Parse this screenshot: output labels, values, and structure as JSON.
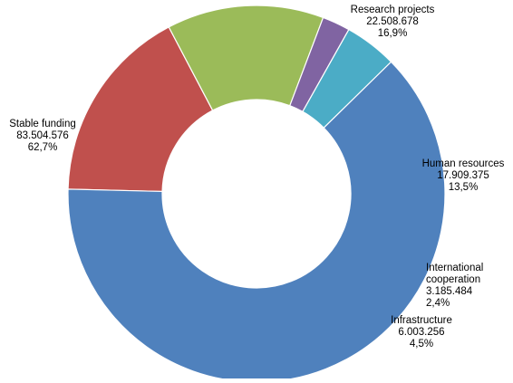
{
  "chart_data": {
    "type": "pie",
    "variant": "donut",
    "title": "",
    "legend": "none",
    "slices": [
      {
        "label_lines": [
          "Research projects"
        ],
        "value": 22508678,
        "value_text": "22.508.678",
        "percent_text": "16,9%",
        "color": "#c0504d"
      },
      {
        "label_lines": [
          "Human resources"
        ],
        "value": 17909375,
        "value_text": "17.909.375",
        "percent_text": "13,5%",
        "color": "#9bbb59"
      },
      {
        "label_lines": [
          "International",
          "cooperation"
        ],
        "value": 3185484,
        "value_text": "3.185.484",
        "percent_text": "2,4%",
        "color": "#8064a2"
      },
      {
        "label_lines": [
          "Infrastructure"
        ],
        "value": 6003256,
        "value_text": "6.003.256",
        "percent_text": "4,5%",
        "color": "#4bacc6"
      },
      {
        "label_lines": [
          "Stable funding"
        ],
        "value": 83504576,
        "value_text": "83.504.576",
        "percent_text": "62,7%",
        "color": "#4f81bd"
      }
    ]
  }
}
